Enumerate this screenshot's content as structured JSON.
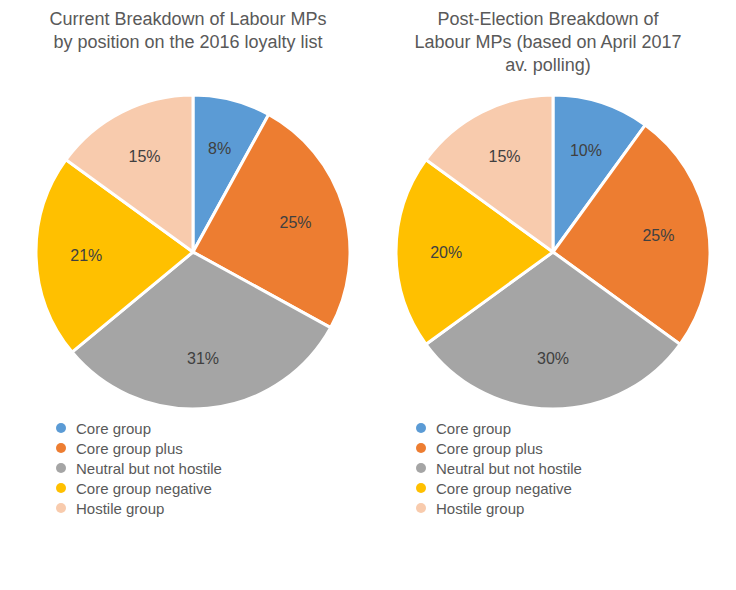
{
  "chart_data": [
    {
      "type": "pie",
      "title": "Current Breakdown of Labour MPs by position on the 2016 loyalty list",
      "categories": [
        "Core group",
        "Core group plus",
        "Neutral but not hostile",
        "Core group negative",
        "Hostile group"
      ],
      "values": [
        8,
        25,
        31,
        21,
        15
      ],
      "value_labels": [
        "8%",
        "25%",
        "31%",
        "21%",
        "15%"
      ],
      "colors": [
        "#5B9BD5",
        "#ED7D31",
        "#A5A5A5",
        "#FFC000",
        "#F8CBAD"
      ],
      "data_labels": true,
      "legend": "bottom"
    },
    {
      "type": "pie",
      "title": "Post-Election Breakdown of Labour MPs (based on April 2017 av. polling)",
      "categories": [
        "Core group",
        "Core group plus",
        "Neutral but not hostile",
        "Core group negative",
        "Hostile group"
      ],
      "values": [
        10,
        25,
        30,
        20,
        15
      ],
      "value_labels": [
        "10%",
        "25%",
        "30%",
        "20%",
        "15%"
      ],
      "colors": [
        "#5B9BD5",
        "#ED7D31",
        "#A5A5A5",
        "#FFC000",
        "#F8CBAD"
      ],
      "data_labels": true,
      "legend": "bottom"
    }
  ]
}
